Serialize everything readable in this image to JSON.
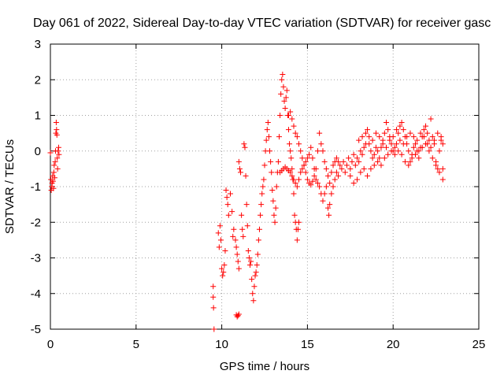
{
  "chart_data": {
    "type": "scatter",
    "title": "Day 061 of 2022, Sidereal Day-to-day VTEC variation (SDTVAR) for receiver gasc",
    "xlabel": "GPS time / hours",
    "ylabel": "SDTVAR / TECUs",
    "xlim": [
      0,
      25
    ],
    "ylim": [
      -5,
      3
    ],
    "xticks": [
      0,
      5,
      10,
      15,
      20,
      25
    ],
    "yticks": [
      -5,
      -4,
      -3,
      -2,
      -1,
      0,
      1,
      2,
      3
    ],
    "xtick_labels": [
      "0",
      "5",
      "10",
      "15",
      "20",
      "25"
    ],
    "ytick_labels": [
      "-5",
      "-4",
      "-3",
      "-2",
      "-1",
      "0",
      "1",
      "2",
      "3"
    ],
    "grid": true,
    "marker": "+",
    "colors": {
      "series": "#ff0000",
      "grid": "#a0a0a0",
      "axes": "#000000"
    },
    "series": [
      {
        "name": "SDTVAR",
        "points": [
          [
            0.0,
            -0.05
          ],
          [
            0.03,
            -0.8
          ],
          [
            0.05,
            -1.1
          ],
          [
            0.08,
            -1.0
          ],
          [
            0.1,
            -0.9
          ],
          [
            0.13,
            -0.7
          ],
          [
            0.15,
            -0.85
          ],
          [
            0.18,
            -1.05
          ],
          [
            0.2,
            -0.6
          ],
          [
            0.22,
            -0.4
          ],
          [
            0.25,
            -0.75
          ],
          [
            0.28,
            -0.3
          ],
          [
            0.3,
            0.0
          ],
          [
            0.32,
            0.5
          ],
          [
            0.34,
            0.8
          ],
          [
            0.36,
            0.6
          ],
          [
            0.38,
            0.45
          ],
          [
            0.4,
            -0.2
          ],
          [
            0.42,
            -0.5
          ],
          [
            0.45,
            0.0
          ],
          [
            0.48,
            0.1
          ],
          [
            0.5,
            -0.1
          ],
          [
            9.5,
            -3.8
          ],
          [
            9.5,
            -4.1
          ],
          [
            9.52,
            -4.4
          ],
          [
            9.55,
            -5.0
          ],
          [
            9.8,
            -2.3
          ],
          [
            9.85,
            -2.7
          ],
          [
            9.9,
            -2.1
          ],
          [
            9.95,
            -2.5
          ],
          [
            10.0,
            -3.3
          ],
          [
            10.05,
            -3.5
          ],
          [
            10.1,
            -3.4
          ],
          [
            10.15,
            -3.2
          ],
          [
            10.2,
            -2.8
          ],
          [
            10.25,
            -1.1
          ],
          [
            10.3,
            -1.3
          ],
          [
            10.35,
            -1.5
          ],
          [
            10.4,
            -1.8
          ],
          [
            10.5,
            -1.2
          ],
          [
            10.6,
            -1.7
          ],
          [
            10.65,
            -2.4
          ],
          [
            10.7,
            -2.2
          ],
          [
            10.8,
            -2.5
          ],
          [
            10.85,
            -2.7
          ],
          [
            10.9,
            -2.9
          ],
          [
            10.95,
            -3.1
          ],
          [
            11.0,
            -3.3
          ],
          [
            10.85,
            -4.6
          ],
          [
            10.9,
            -4.65
          ],
          [
            10.95,
            -4.62
          ],
          [
            11.0,
            -4.58
          ],
          [
            11.0,
            -0.3
          ],
          [
            11.05,
            -0.5
          ],
          [
            11.1,
            -0.6
          ],
          [
            11.15,
            -1.8
          ],
          [
            11.2,
            -2.2
          ],
          [
            11.25,
            -2.4
          ],
          [
            11.3,
            0.2
          ],
          [
            11.35,
            0.1
          ],
          [
            11.4,
            -0.7
          ],
          [
            11.45,
            -1.5
          ],
          [
            11.5,
            -2.1
          ],
          [
            11.55,
            -2.8
          ],
          [
            11.6,
            -3.0
          ],
          [
            11.65,
            -3.2
          ],
          [
            11.7,
            -3.1
          ],
          [
            11.75,
            -3.6
          ],
          [
            11.8,
            -4.0
          ],
          [
            11.85,
            -4.2
          ],
          [
            11.9,
            -3.8
          ],
          [
            11.95,
            -3.5
          ],
          [
            12.0,
            -3.4
          ],
          [
            12.05,
            -3.2
          ],
          [
            12.1,
            -2.9
          ],
          [
            12.15,
            -2.5
          ],
          [
            12.2,
            -2.2
          ],
          [
            12.25,
            -1.8
          ],
          [
            12.3,
            -1.5
          ],
          [
            12.35,
            -1.2
          ],
          [
            12.4,
            -1.0
          ],
          [
            12.45,
            -0.8
          ],
          [
            12.5,
            -0.4
          ],
          [
            12.55,
            0.0
          ],
          [
            12.6,
            0.3
          ],
          [
            12.65,
            0.6
          ],
          [
            12.7,
            0.8
          ],
          [
            12.75,
            0.4
          ],
          [
            12.8,
            0.0
          ],
          [
            12.85,
            -0.3
          ],
          [
            12.9,
            -0.6
          ],
          [
            12.95,
            -1.1
          ],
          [
            13.0,
            -1.4
          ],
          [
            13.05,
            -1.8
          ],
          [
            13.1,
            -2.0
          ],
          [
            13.15,
            -1.6
          ],
          [
            13.2,
            -1.0
          ],
          [
            13.25,
            -0.6
          ],
          [
            13.3,
            -0.3
          ],
          [
            13.35,
            0.4
          ],
          [
            13.4,
            1.0
          ],
          [
            13.45,
            1.6
          ],
          [
            13.5,
            2.0
          ],
          [
            13.55,
            2.15
          ],
          [
            13.6,
            1.8
          ],
          [
            13.65,
            1.4
          ],
          [
            13.7,
            1.2
          ],
          [
            13.75,
            1.5
          ],
          [
            13.8,
            1.7
          ],
          [
            13.85,
            1.0
          ],
          [
            13.9,
            0.6
          ],
          [
            13.95,
            0.2
          ],
          [
            14.0,
            0.0
          ],
          [
            14.05,
            -0.2
          ],
          [
            14.1,
            -0.5
          ],
          [
            14.15,
            -0.8
          ],
          [
            14.2,
            -1.2
          ],
          [
            14.25,
            -1.8
          ],
          [
            14.3,
            -2.0
          ],
          [
            14.35,
            -2.2
          ],
          [
            14.4,
            -2.5
          ],
          [
            14.45,
            -2.2
          ],
          [
            14.5,
            -2.0
          ],
          [
            13.4,
            -0.6
          ],
          [
            13.5,
            -0.55
          ],
          [
            13.6,
            -0.5
          ],
          [
            13.7,
            -0.45
          ],
          [
            13.8,
            -0.5
          ],
          [
            13.9,
            -0.55
          ],
          [
            14.0,
            -0.6
          ],
          [
            14.1,
            -0.7
          ],
          [
            14.2,
            -0.8
          ],
          [
            14.3,
            -0.9
          ],
          [
            14.4,
            -1.0
          ],
          [
            14.5,
            -0.8
          ],
          [
            14.6,
            -0.6
          ],
          [
            14.7,
            -0.5
          ],
          [
            14.8,
            -0.4
          ],
          [
            14.9,
            -0.3
          ],
          [
            15.0,
            -0.2
          ],
          [
            15.1,
            -0.1
          ],
          [
            15.2,
            0.1
          ],
          [
            15.3,
            -0.2
          ],
          [
            15.4,
            -0.5
          ],
          [
            15.5,
            -0.8
          ],
          [
            15.6,
            -0.9
          ],
          [
            15.7,
            -1.0
          ],
          [
            15.8,
            -1.2
          ],
          [
            15.9,
            -1.4
          ],
          [
            16.0,
            -1.2
          ],
          [
            16.1,
            -1.0
          ],
          [
            16.2,
            -1.6
          ],
          [
            16.25,
            -1.8
          ],
          [
            16.3,
            -1.5
          ],
          [
            16.4,
            -1.2
          ],
          [
            16.5,
            -1.0
          ],
          [
            16.6,
            -0.8
          ],
          [
            16.7,
            -0.6
          ],
          [
            16.8,
            -0.7
          ],
          [
            13.9,
            1.0
          ],
          [
            14.0,
            1.1
          ],
          [
            14.1,
            0.9
          ],
          [
            14.2,
            0.7
          ],
          [
            14.3,
            0.5
          ],
          [
            14.4,
            0.4
          ],
          [
            14.5,
            0.2
          ],
          [
            14.6,
            0.0
          ],
          [
            14.7,
            -0.2
          ],
          [
            14.8,
            -0.4
          ],
          [
            14.9,
            -0.6
          ],
          [
            15.0,
            -0.8
          ],
          [
            15.1,
            -0.9
          ],
          [
            15.2,
            -0.95
          ],
          [
            15.3,
            -0.85
          ],
          [
            15.4,
            -0.7
          ],
          [
            15.5,
            -0.5
          ],
          [
            15.6,
            0.0
          ],
          [
            15.7,
            0.5
          ],
          [
            15.8,
            0.2
          ],
          [
            15.9,
            0.0
          ],
          [
            16.0,
            -0.3
          ],
          [
            16.1,
            -0.5
          ],
          [
            16.2,
            -0.7
          ],
          [
            16.3,
            -0.9
          ],
          [
            16.4,
            -0.6
          ],
          [
            16.5,
            -0.4
          ],
          [
            16.6,
            -0.3
          ],
          [
            16.7,
            -0.2
          ],
          [
            16.8,
            -0.3
          ],
          [
            16.9,
            -0.4
          ],
          [
            17.0,
            -0.5
          ],
          [
            17.1,
            -0.3
          ],
          [
            17.2,
            -0.6
          ],
          [
            17.3,
            -0.4
          ],
          [
            17.4,
            -0.2
          ],
          [
            17.5,
            -0.5
          ],
          [
            17.6,
            -0.3
          ],
          [
            17.7,
            -0.1
          ],
          [
            17.8,
            -0.4
          ],
          [
            17.9,
            -0.2
          ],
          [
            18.0,
            -0.3
          ],
          [
            18.1,
            0.0
          ],
          [
            18.2,
            -0.1
          ],
          [
            18.3,
            0.1
          ],
          [
            18.4,
            0.5
          ],
          [
            18.5,
            0.6
          ],
          [
            18.6,
            0.2
          ],
          [
            18.7,
            0.0
          ],
          [
            18.8,
            -0.2
          ],
          [
            18.9,
            -0.1
          ],
          [
            19.0,
            0.1
          ],
          [
            19.1,
            0.0
          ],
          [
            19.2,
            -0.2
          ],
          [
            19.3,
            0.1
          ],
          [
            19.4,
            0.3
          ],
          [
            19.5,
            0.5
          ],
          [
            19.6,
            0.8
          ],
          [
            19.7,
            0.6
          ],
          [
            19.8,
            0.4
          ],
          [
            19.9,
            0.2
          ],
          [
            20.0,
            0.0
          ],
          [
            20.1,
            -0.1
          ],
          [
            20.2,
            0.2
          ],
          [
            20.3,
            0.5
          ],
          [
            20.4,
            0.7
          ],
          [
            20.5,
            0.8
          ],
          [
            20.6,
            0.6
          ],
          [
            20.7,
            0.4
          ],
          [
            20.8,
            0.2
          ],
          [
            20.9,
            0.0
          ],
          [
            21.0,
            -0.3
          ],
          [
            21.1,
            -0.1
          ],
          [
            21.2,
            0.1
          ],
          [
            21.3,
            0.2
          ],
          [
            21.4,
            0.0
          ],
          [
            21.5,
            -0.2
          ],
          [
            21.6,
            0.1
          ],
          [
            21.7,
            0.4
          ],
          [
            21.8,
            0.6
          ],
          [
            21.9,
            0.7
          ],
          [
            22.0,
            0.5
          ],
          [
            22.1,
            0.3
          ],
          [
            22.2,
            0.9
          ],
          [
            22.3,
            0.4
          ],
          [
            22.4,
            0.2
          ],
          [
            22.5,
            -0.3
          ],
          [
            22.6,
            -0.5
          ],
          [
            22.7,
            0.0
          ],
          [
            22.8,
            0.3
          ],
          [
            22.9,
            -0.8
          ],
          [
            17.5,
            -0.7
          ],
          [
            17.7,
            -0.9
          ],
          [
            17.9,
            -0.8
          ],
          [
            18.1,
            -0.6
          ],
          [
            18.3,
            -0.5
          ],
          [
            18.5,
            -0.7
          ],
          [
            18.7,
            -0.5
          ],
          [
            18.9,
            -0.4
          ],
          [
            19.1,
            -0.3
          ],
          [
            19.3,
            -0.4
          ],
          [
            19.5,
            -0.2
          ],
          [
            19.7,
            -0.1
          ],
          [
            19.9,
            0.0
          ],
          [
            20.1,
            0.1
          ],
          [
            20.3,
            0.0
          ],
          [
            20.5,
            -0.1
          ],
          [
            20.7,
            -0.3
          ],
          [
            20.9,
            -0.4
          ],
          [
            21.1,
            -0.2
          ],
          [
            21.3,
            -0.1
          ],
          [
            21.5,
            0.0
          ],
          [
            21.7,
            0.1
          ],
          [
            21.9,
            0.2
          ],
          [
            22.1,
            0.0
          ],
          [
            22.3,
            -0.2
          ],
          [
            22.5,
            -0.4
          ],
          [
            22.7,
            -0.6
          ],
          [
            22.9,
            -0.5
          ],
          [
            18.0,
            0.3
          ],
          [
            18.2,
            0.4
          ],
          [
            18.4,
            0.2
          ],
          [
            18.6,
            0.4
          ],
          [
            18.8,
            0.3
          ],
          [
            19.0,
            0.5
          ],
          [
            19.2,
            0.4
          ],
          [
            19.4,
            0.2
          ],
          [
            19.6,
            0.1
          ],
          [
            19.8,
            0.3
          ],
          [
            20.0,
            0.4
          ],
          [
            20.2,
            0.6
          ],
          [
            20.4,
            0.3
          ],
          [
            20.6,
            0.2
          ],
          [
            20.8,
            0.4
          ],
          [
            21.0,
            0.5
          ],
          [
            21.2,
            0.4
          ],
          [
            21.4,
            0.3
          ],
          [
            21.6,
            0.5
          ],
          [
            21.8,
            0.4
          ],
          [
            22.0,
            0.2
          ],
          [
            22.2,
            0.1
          ],
          [
            22.4,
            0.3
          ],
          [
            22.6,
            0.5
          ],
          [
            22.8,
            0.4
          ],
          [
            22.9,
            0.2
          ]
        ]
      }
    ]
  }
}
